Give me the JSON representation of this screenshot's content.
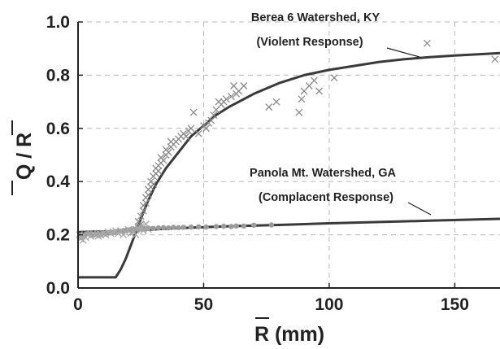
{
  "chart_data": {
    "type": "scatter",
    "xlabel": "R (mm)",
    "ylabel": "Q / R",
    "xlim": [
      0,
      168
    ],
    "ylim": [
      0,
      1.0
    ],
    "xticks": [
      0,
      50,
      100,
      150
    ],
    "yticks": [
      0.0,
      0.2,
      0.4,
      0.6,
      0.8,
      1.0
    ],
    "xtick_labels": [
      "0",
      "50",
      "100",
      "150"
    ],
    "ytick_labels": [
      "0.0",
      "0.2",
      "0.4",
      "0.6",
      "0.8",
      "1.0"
    ],
    "grid": true,
    "annotations": [
      {
        "line1": "Berea 6 Watershed, KY",
        "line2": "(Violent Response)"
      },
      {
        "line1": "Panola Mt. Watershed, GA",
        "line2": "(Complacent Response)"
      }
    ],
    "series": [
      {
        "marker": "x",
        "color": "#8a8a8a",
        "points": [
          [
            22,
            0.21
          ],
          [
            23,
            0.22
          ],
          [
            24,
            0.23
          ],
          [
            24,
            0.25
          ],
          [
            25,
            0.24
          ],
          [
            25,
            0.27
          ],
          [
            26,
            0.29
          ],
          [
            26,
            0.31
          ],
          [
            27,
            0.32
          ],
          [
            27,
            0.34
          ],
          [
            28,
            0.35
          ],
          [
            28,
            0.37
          ],
          [
            29,
            0.38
          ],
          [
            29,
            0.4
          ],
          [
            30,
            0.39
          ],
          [
            30,
            0.42
          ],
          [
            31,
            0.43
          ],
          [
            31,
            0.45
          ],
          [
            32,
            0.44
          ],
          [
            32,
            0.46
          ],
          [
            33,
            0.47
          ],
          [
            33,
            0.49
          ],
          [
            34,
            0.48
          ],
          [
            35,
            0.5
          ],
          [
            35,
            0.52
          ],
          [
            36,
            0.51
          ],
          [
            37,
            0.53
          ],
          [
            37,
            0.55
          ],
          [
            38,
            0.54
          ],
          [
            39,
            0.55
          ],
          [
            40,
            0.56
          ],
          [
            41,
            0.57
          ],
          [
            42,
            0.58
          ],
          [
            43,
            0.57
          ],
          [
            44,
            0.59
          ],
          [
            45,
            0.6
          ],
          [
            46,
            0.66
          ],
          [
            48,
            0.58
          ],
          [
            50,
            0.61
          ],
          [
            51,
            0.6
          ],
          [
            52,
            0.62
          ],
          [
            53,
            0.63
          ],
          [
            54,
            0.65
          ],
          [
            55,
            0.67
          ],
          [
            56,
            0.7
          ],
          [
            57,
            0.69
          ],
          [
            58,
            0.7
          ],
          [
            59,
            0.71
          ],
          [
            61,
            0.72
          ],
          [
            62,
            0.76
          ],
          [
            63,
            0.73
          ],
          [
            64,
            0.74
          ],
          [
            66,
            0.76
          ],
          [
            76,
            0.68
          ],
          [
            79,
            0.7
          ],
          [
            88,
            0.66
          ],
          [
            89,
            0.71
          ],
          [
            90,
            0.74
          ],
          [
            92,
            0.76
          ],
          [
            94,
            0.78
          ],
          [
            96,
            0.74
          ],
          [
            102,
            0.79
          ],
          [
            139,
            0.92
          ],
          [
            166,
            0.86
          ]
        ]
      },
      {
        "marker": "circle",
        "color": "#9a9a9a",
        "points": [
          [
            1,
            0.19
          ],
          [
            2,
            0.195
          ],
          [
            3,
            0.2
          ],
          [
            4,
            0.205
          ],
          [
            5,
            0.2
          ],
          [
            6,
            0.198
          ],
          [
            7,
            0.202
          ],
          [
            8,
            0.205
          ],
          [
            9,
            0.2
          ],
          [
            10,
            0.207
          ],
          [
            11,
            0.205
          ],
          [
            12,
            0.208
          ],
          [
            13,
            0.21
          ],
          [
            14,
            0.209
          ],
          [
            15,
            0.212
          ],
          [
            16,
            0.214
          ],
          [
            17,
            0.213
          ],
          [
            18,
            0.215
          ],
          [
            19,
            0.216
          ],
          [
            20,
            0.218
          ],
          [
            21,
            0.22
          ],
          [
            22,
            0.219
          ],
          [
            23,
            0.222
          ],
          [
            24,
            0.22
          ],
          [
            25,
            0.223
          ],
          [
            26,
            0.224
          ],
          [
            27,
            0.223
          ],
          [
            28,
            0.225
          ],
          [
            30,
            0.224
          ],
          [
            32,
            0.226
          ],
          [
            34,
            0.227
          ],
          [
            36,
            0.226
          ],
          [
            38,
            0.228
          ],
          [
            40,
            0.227
          ],
          [
            42,
            0.228
          ],
          [
            45,
            0.229
          ],
          [
            48,
            0.23
          ],
          [
            51,
            0.229
          ],
          [
            55,
            0.231
          ],
          [
            58,
            0.232
          ],
          [
            61,
            0.231
          ],
          [
            63,
            0.233
          ],
          [
            66,
            0.233
          ],
          [
            70,
            0.236
          ],
          [
            77,
            0.237
          ]
        ]
      },
      {
        "marker": "x",
        "color": "#a8a8a8",
        "points": [
          [
            0.5,
            0.2
          ],
          [
            1,
            0.185
          ],
          [
            1.5,
            0.195
          ],
          [
            2,
            0.18
          ],
          [
            3,
            0.19
          ],
          [
            4,
            0.2
          ],
          [
            5,
            0.195
          ],
          [
            6,
            0.205
          ],
          [
            7,
            0.2
          ],
          [
            8,
            0.195
          ],
          [
            9,
            0.2
          ],
          [
            10,
            0.205
          ],
          [
            11,
            0.2
          ],
          [
            12,
            0.21
          ],
          [
            13,
            0.205
          ],
          [
            14,
            0.21
          ],
          [
            15,
            0.215
          ],
          [
            16,
            0.205
          ],
          [
            17,
            0.215
          ],
          [
            18,
            0.2
          ],
          [
            19,
            0.21
          ],
          [
            20,
            0.22
          ],
          [
            21,
            0.205
          ],
          [
            22,
            0.215
          ],
          [
            23,
            0.2
          ],
          [
            24,
            0.225
          ],
          [
            25,
            0.23
          ],
          [
            26,
            0.215
          ],
          [
            27,
            0.24
          ],
          [
            28,
            0.22
          ]
        ]
      }
    ],
    "fit_lines": [
      {
        "style": "solid",
        "color": "#3a3a3a",
        "points": [
          [
            0,
            0.04
          ],
          [
            15,
            0.04
          ],
          [
            17,
            0.07
          ],
          [
            19,
            0.11
          ],
          [
            21,
            0.16
          ],
          [
            23,
            0.21
          ],
          [
            25,
            0.26
          ],
          [
            28,
            0.33
          ],
          [
            31,
            0.39
          ],
          [
            35,
            0.45
          ],
          [
            40,
            0.51
          ],
          [
            45,
            0.57
          ],
          [
            50,
            0.61
          ],
          [
            55,
            0.65
          ],
          [
            60,
            0.68
          ],
          [
            70,
            0.73
          ],
          [
            80,
            0.77
          ],
          [
            90,
            0.8
          ],
          [
            100,
            0.82
          ],
          [
            110,
            0.835
          ],
          [
            120,
            0.85
          ],
          [
            130,
            0.86
          ],
          [
            140,
            0.868
          ],
          [
            150,
            0.874
          ],
          [
            160,
            0.879
          ],
          [
            168,
            0.883
          ]
        ]
      },
      {
        "style": "solid",
        "color": "#3a3a3a",
        "points": [
          [
            0,
            0.21
          ],
          [
            20,
            0.215
          ],
          [
            40,
            0.225
          ],
          [
            60,
            0.232
          ],
          [
            80,
            0.237
          ],
          [
            100,
            0.243
          ],
          [
            120,
            0.248
          ],
          [
            140,
            0.253
          ],
          [
            168,
            0.26
          ]
        ]
      }
    ]
  }
}
